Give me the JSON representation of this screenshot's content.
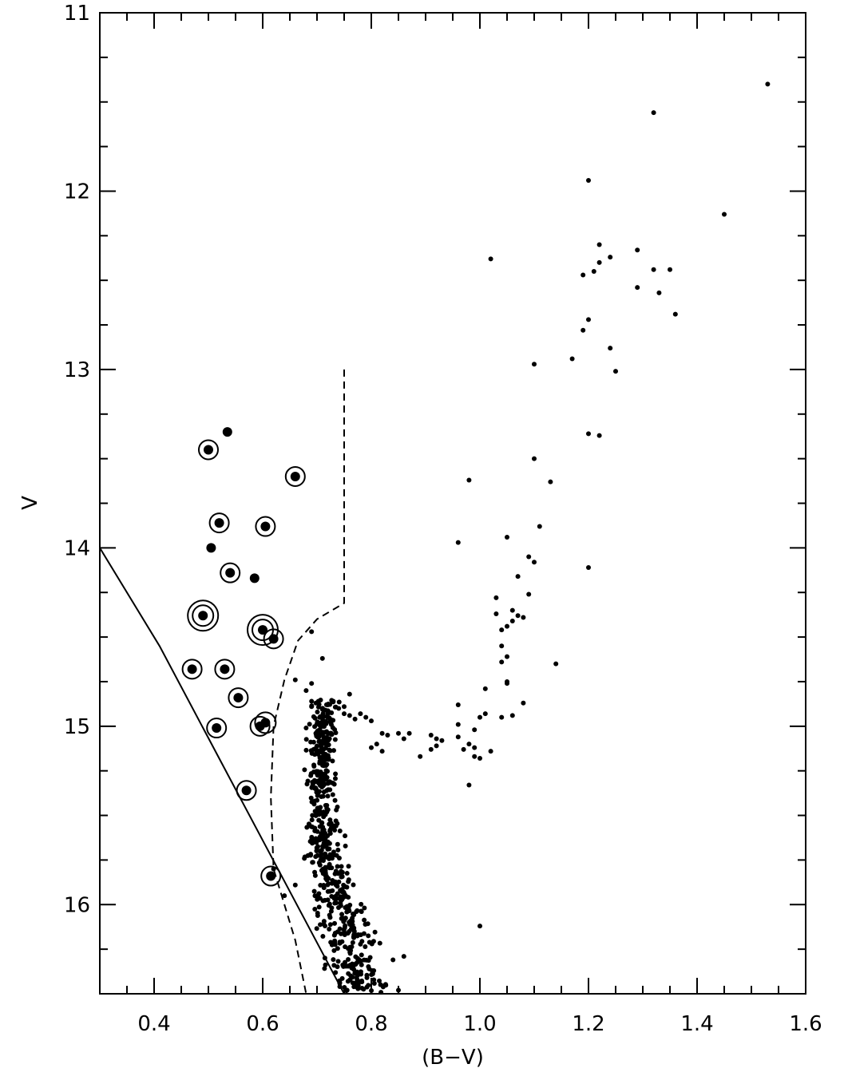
{
  "chart_data": {
    "type": "scatter",
    "title": "",
    "xlabel": "(B−V)",
    "ylabel": "V",
    "xlim": [
      0.3,
      1.6
    ],
    "ylim": [
      16.5,
      11.0
    ],
    "y_inverted": true,
    "grid": false,
    "legend": "none",
    "xticks": [
      0.4,
      0.6,
      0.8,
      1.0,
      1.2,
      1.4,
      1.6
    ],
    "xtick_labels": [
      "0.4",
      "0.6",
      "0.8",
      "1.0",
      "1.2",
      "1.4",
      "1.6"
    ],
    "yticks": [
      11,
      12,
      13,
      14,
      15,
      16
    ],
    "ytick_labels": [
      "11",
      "12",
      "13",
      "14",
      "15",
      "16"
    ],
    "x_minor_step": 0.05,
    "y_minor_step": 0.25,
    "colors": {
      "ink": "#000000",
      "background": "#ffffff"
    },
    "series": [
      {
        "kind": "points",
        "marker": "small-dot",
        "points": [
          [
            1.53,
            11.4
          ],
          [
            1.32,
            11.56
          ],
          [
            1.2,
            11.94
          ],
          [
            1.45,
            12.13
          ],
          [
            1.02,
            12.38
          ],
          [
            1.22,
            12.3
          ],
          [
            1.21,
            12.45
          ],
          [
            1.22,
            12.4
          ],
          [
            1.24,
            12.37
          ],
          [
            1.19,
            12.47
          ],
          [
            1.29,
            12.33
          ],
          [
            1.32,
            12.44
          ],
          [
            1.35,
            12.44
          ],
          [
            1.29,
            12.54
          ],
          [
            1.33,
            12.57
          ],
          [
            1.36,
            12.69
          ],
          [
            1.2,
            12.72
          ],
          [
            1.19,
            12.78
          ],
          [
            1.24,
            12.88
          ],
          [
            1.17,
            12.94
          ],
          [
            1.1,
            12.97
          ],
          [
            1.25,
            13.01
          ],
          [
            1.2,
            13.36
          ],
          [
            1.22,
            13.37
          ],
          [
            1.1,
            13.5
          ],
          [
            0.98,
            13.62
          ],
          [
            1.13,
            13.63
          ],
          [
            1.11,
            13.88
          ],
          [
            1.05,
            13.94
          ],
          [
            0.96,
            13.97
          ],
          [
            1.09,
            14.05
          ],
          [
            1.1,
            14.08
          ],
          [
            1.2,
            14.11
          ],
          [
            1.07,
            14.16
          ],
          [
            1.09,
            14.26
          ],
          [
            1.03,
            14.28
          ],
          [
            1.03,
            14.37
          ],
          [
            1.06,
            14.35
          ],
          [
            1.07,
            14.38
          ],
          [
            1.08,
            14.39
          ],
          [
            1.06,
            14.41
          ],
          [
            1.05,
            14.44
          ],
          [
            1.04,
            14.46
          ],
          [
            1.04,
            14.55
          ],
          [
            1.05,
            14.61
          ],
          [
            1.04,
            14.64
          ],
          [
            1.14,
            14.65
          ],
          [
            1.05,
            14.75
          ],
          [
            1.05,
            14.76
          ],
          [
            1.01,
            14.79
          ],
          [
            1.08,
            14.87
          ],
          [
            0.96,
            14.88
          ],
          [
            1.01,
            14.93
          ],
          [
            1.0,
            14.95
          ],
          [
            1.04,
            14.95
          ],
          [
            1.06,
            14.94
          ],
          [
            0.96,
            14.99
          ],
          [
            0.99,
            15.02
          ],
          [
            0.96,
            15.06
          ],
          [
            0.91,
            15.05
          ],
          [
            0.92,
            15.07
          ],
          [
            0.93,
            15.08
          ],
          [
            0.98,
            15.1
          ],
          [
            0.99,
            15.12
          ],
          [
            0.97,
            15.13
          ],
          [
            0.91,
            15.13
          ],
          [
            0.92,
            15.11
          ],
          [
            1.02,
            15.14
          ],
          [
            0.99,
            15.17
          ],
          [
            1.0,
            15.18
          ],
          [
            0.89,
            15.17
          ],
          [
            0.98,
            15.33
          ],
          [
            0.86,
            15.07
          ],
          [
            0.87,
            15.04
          ],
          [
            0.85,
            15.04
          ],
          [
            0.82,
            15.04
          ],
          [
            0.83,
            15.05
          ],
          [
            0.81,
            15.1
          ],
          [
            0.82,
            15.14
          ],
          [
            0.8,
            15.12
          ],
          [
            0.78,
            14.93
          ],
          [
            0.79,
            14.95
          ],
          [
            0.8,
            14.97
          ],
          [
            0.77,
            14.96
          ],
          [
            0.76,
            14.94
          ],
          [
            0.75,
            14.93
          ],
          [
            0.75,
            14.89
          ],
          [
            0.74,
            14.9
          ],
          [
            0.76,
            14.82
          ],
          [
            0.73,
            14.86
          ],
          [
            0.72,
            14.88
          ],
          [
            0.72,
            14.93
          ],
          [
            0.71,
            14.9
          ],
          [
            0.69,
            14.89
          ],
          [
            0.69,
            14.86
          ],
          [
            0.69,
            14.76
          ],
          [
            0.68,
            14.8
          ],
          [
            0.69,
            14.47
          ],
          [
            0.71,
            14.62
          ],
          [
            0.66,
            14.74
          ],
          [
            1.0,
            16.12
          ],
          [
            0.86,
            16.29
          ],
          [
            0.85,
            16.48
          ],
          [
            0.84,
            16.31
          ],
          [
            0.66,
            15.89
          ],
          [
            0.64,
            15.95
          ],
          [
            0.62,
            15.8
          ]
        ]
      },
      {
        "kind": "band",
        "marker": "small-dot",
        "description": "main sequence / subgiant point cloud",
        "upper": [
          [
            14.85,
            0.68,
            0.76
          ],
          [
            15.0,
            0.67,
            0.75
          ],
          [
            15.2,
            0.67,
            0.74
          ],
          [
            15.5,
            0.67,
            0.75
          ],
          [
            15.8,
            0.67,
            0.77
          ],
          [
            16.0,
            0.68,
            0.8
          ],
          [
            16.2,
            0.69,
            0.83
          ],
          [
            16.5,
            0.7,
            0.86
          ]
        ],
        "count": 620
      },
      {
        "kind": "points",
        "marker": "filled-dot",
        "points": [
          [
            0.535,
            13.35
          ],
          [
            0.505,
            14.0
          ],
          [
            0.585,
            14.17
          ]
        ]
      },
      {
        "kind": "points",
        "marker": "circled-dot",
        "points": [
          [
            0.5,
            13.45
          ],
          [
            0.66,
            13.6
          ],
          [
            0.52,
            13.86
          ],
          [
            0.605,
            13.88
          ],
          [
            0.54,
            14.14
          ],
          [
            0.62,
            14.51
          ],
          [
            0.47,
            14.68
          ],
          [
            0.53,
            14.68
          ],
          [
            0.555,
            14.84
          ],
          [
            0.595,
            15.0
          ],
          [
            0.515,
            15.01
          ],
          [
            0.57,
            15.36
          ],
          [
            0.615,
            15.84
          ]
        ]
      },
      {
        "kind": "points",
        "marker": "double-circled-dot",
        "points": [
          [
            0.49,
            14.38
          ],
          [
            0.6,
            14.46
          ]
        ]
      },
      {
        "kind": "points",
        "marker": "circled-dot-large",
        "points": [
          [
            0.605,
            14.98
          ]
        ]
      },
      {
        "kind": "line",
        "style": "solid",
        "points": [
          [
            0.3,
            14.0
          ],
          [
            0.41,
            14.55
          ],
          [
            0.75,
            16.5
          ]
        ]
      },
      {
        "kind": "line",
        "style": "dashed",
        "points": [
          [
            0.75,
            13.0
          ],
          [
            0.75,
            14.31
          ],
          [
            0.7,
            14.4
          ],
          [
            0.665,
            14.52
          ],
          [
            0.64,
            14.74
          ],
          [
            0.62,
            15.0
          ],
          [
            0.615,
            15.4
          ],
          [
            0.62,
            15.8
          ],
          [
            0.66,
            16.2
          ],
          [
            0.68,
            16.5
          ]
        ]
      }
    ]
  }
}
